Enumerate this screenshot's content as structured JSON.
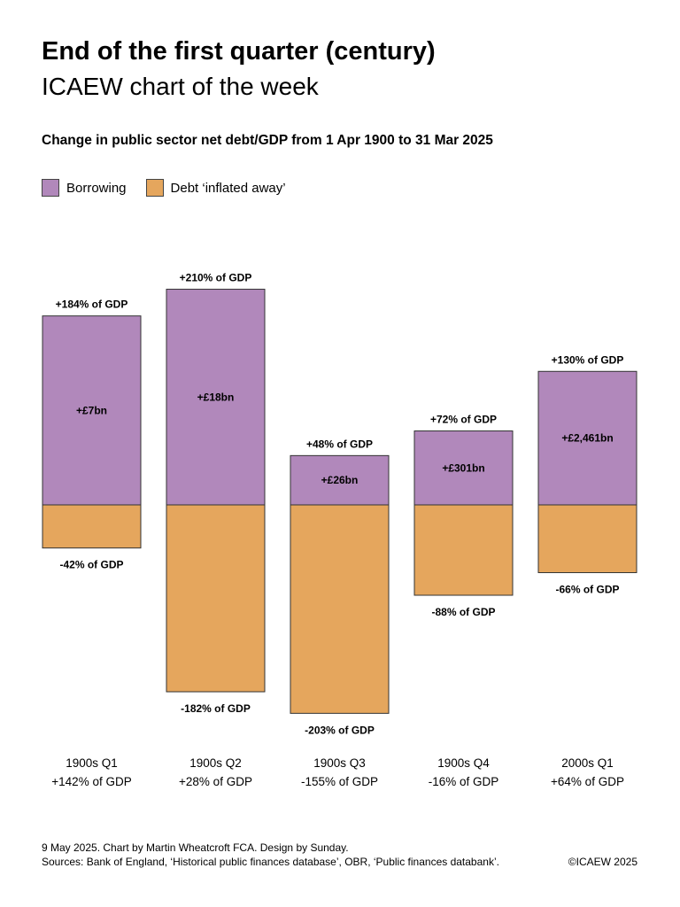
{
  "header": {
    "title": "End of the first quarter (century)",
    "subtitle": "ICAEW chart of the week"
  },
  "colors": {
    "borrowing": "#b188bb",
    "inflated": "#e5a65d",
    "outline": "#333333"
  },
  "legend": [
    {
      "label": "Borrowing",
      "color": "#b188bb"
    },
    {
      "label": "Debt ‘inflated away’",
      "color": "#e5a65d"
    }
  ],
  "footer": {
    "line1": "9 May 2025.   Chart by Martin Wheatcroft FCA. Design by Sunday.",
    "line2": "Sources: Bank of England, ‘Historical public finances database’, OBR, ‘Public finances databank’.",
    "copyright": "©ICAEW 2025"
  },
  "chart_data": {
    "type": "bar",
    "title": "Change in public sector net debt/GDP from 1 Apr 1900 to 31 Mar 2025",
    "categories": [
      "1900s Q1",
      "1900s Q2",
      "1900s Q3",
      "1900s Q4",
      "2000s Q1"
    ],
    "net_change_labels": [
      "+142% of GDP",
      "+28% of GDP",
      "-155% of GDP",
      "-16% of GDP",
      "+64% of GDP"
    ],
    "series": [
      {
        "name": "Borrowing",
        "values": [
          184,
          210,
          48,
          72,
          130
        ],
        "labels": [
          "+184% of GDP",
          "+210% of GDP",
          "+48% of GDP",
          "+72% of GDP",
          "+130% of GDP"
        ],
        "inner_labels": [
          "+£7bn",
          "+£18bn",
          "+£26bn",
          "+£301bn",
          "+£2,461bn"
        ]
      },
      {
        "name": "Debt ‘inflated away’",
        "values": [
          -42,
          -182,
          -203,
          -88,
          -66
        ],
        "labels": [
          "-42% of GDP",
          "-182% of GDP",
          "-203% of GDP",
          "-88% of GDP",
          "-66% of GDP"
        ]
      }
    ],
    "unit": "% of GDP",
    "ylim": [
      -203,
      210
    ]
  }
}
